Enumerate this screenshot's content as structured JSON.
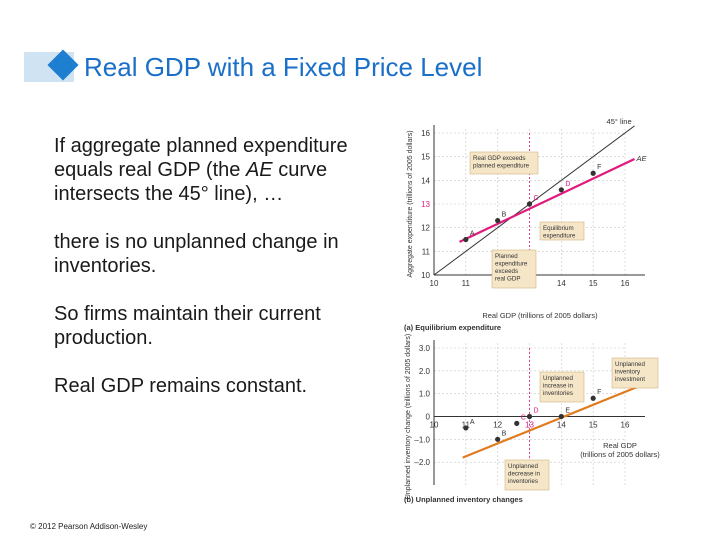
{
  "slide": {
    "title": "Real GDP with a Fixed Price Level",
    "bullets": [
      {
        "pre": "If aggregate planned expenditure equals real GDP (the ",
        "em": "AE",
        "post": " curve intersects the 45° line), …"
      },
      {
        "pre": "there is no unplanned change in inventories.",
        "em": "",
        "post": ""
      },
      {
        "pre": "So firms maintain their current production.",
        "em": "",
        "post": ""
      },
      {
        "pre": "Real GDP remains constant.",
        "em": "",
        "post": ""
      }
    ],
    "copyright": "© 2012 Pearson Addison-Wesley"
  },
  "colors": {
    "title": "#1a6fc8",
    "ae_line": "#e0197d",
    "inventory_line": "#e07b20",
    "highlight": "#e0197d",
    "callout_fill": "#f5e6c8"
  },
  "chart_data": [
    {
      "type": "line",
      "caption": "(a) Equilibrium expenditure",
      "ylabel": "Aggregate expenditure (trillions of 2005 dollars)",
      "xlabel": "Real GDP (trillions of 2005 dollars)",
      "xlim": [
        10,
        16
      ],
      "ylim": [
        10,
        16
      ],
      "xticks": [
        10,
        11,
        12,
        13,
        14,
        15,
        16
      ],
      "yticks": [
        10,
        11,
        12,
        13,
        14,
        15,
        16
      ],
      "series": [
        {
          "name": "45° line",
          "x": [
            10,
            16.3
          ],
          "y": [
            10,
            16.3
          ]
        },
        {
          "name": "AE",
          "x": [
            10.8,
            16.3
          ],
          "y": [
            11.4,
            14.9
          ]
        }
      ],
      "points": [
        {
          "label": "A",
          "x": 11,
          "y": 11.5
        },
        {
          "label": "B",
          "x": 12,
          "y": 12.3
        },
        {
          "label": "C",
          "x": 13,
          "y": 13.0
        },
        {
          "label": "D",
          "x": 14,
          "y": 13.6
        },
        {
          "label": "F",
          "x": 15,
          "y": 14.3
        }
      ],
      "highlight_label": "13",
      "annotations": [
        {
          "text": [
            "Real GDP exceeds",
            "planned expenditure"
          ]
        },
        {
          "text": [
            "Equilibrium",
            "expenditure"
          ]
        },
        {
          "text": [
            "Planned",
            "expenditure",
            "exceeds",
            "real GDP"
          ]
        }
      ]
    },
    {
      "type": "line",
      "caption": "(b) Unplanned inventory changes",
      "ylabel": "Unplanned inventory change (trillions of 2005 dollars)",
      "xlabel": [
        "Real GDP",
        "(trillions of 2005 dollars)"
      ],
      "xlim": [
        10,
        16
      ],
      "ylim": [
        -3.0,
        3.0
      ],
      "xticks": [
        10,
        11,
        12,
        13,
        14,
        15,
        16
      ],
      "yticks": [
        3.0,
        2.0,
        1.0,
        0,
        -1.0,
        -2.0
      ],
      "ytick_labels": [
        "3.0",
        "2.0",
        "1.0",
        "0",
        "–1.0",
        "–2.0"
      ],
      "series": [
        {
          "name": "Unplanned inventory change",
          "x": [
            10.9,
            16.4
          ],
          "y": [
            -1.8,
            1.3
          ]
        }
      ],
      "points": [
        {
          "label": "A",
          "x": 11,
          "y": -0.5
        },
        {
          "label": "B",
          "x": 12,
          "y": -1.0
        },
        {
          "label": "C",
          "x": 12.6,
          "y": -0.3
        },
        {
          "label": "D",
          "x": 13,
          "y": 0
        },
        {
          "label": "E",
          "x": 14,
          "y": 0
        },
        {
          "label": "F",
          "x": 15,
          "y": 0.8
        }
      ],
      "highlight_label": "13",
      "annotations": [
        {
          "text": [
            "Unplanned",
            "increase in",
            "inventories"
          ]
        },
        {
          "text": [
            "Unplanned",
            "inventory",
            "investment"
          ]
        },
        {
          "text": [
            "Unplanned",
            "decrease in",
            "inventories"
          ]
        }
      ]
    }
  ]
}
